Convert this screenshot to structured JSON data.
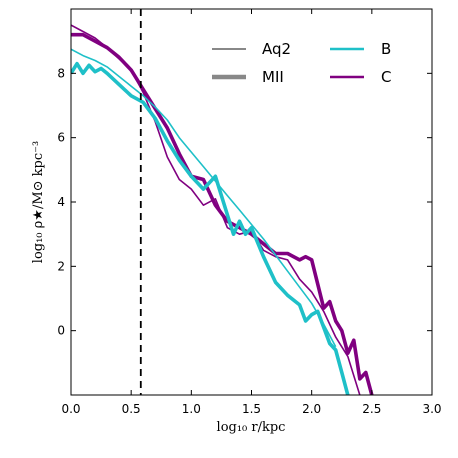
{
  "chart_data": {
    "type": "line",
    "xlabel": "log₁₀ r/kpc",
    "ylabel": "log₁₀ ρ★/M⊙ kpc⁻³",
    "xlim": [
      0.0,
      3.0
    ],
    "ylim": [
      -2.0,
      10.0
    ],
    "xticks": [
      0.0,
      0.5,
      1.0,
      1.5,
      2.0,
      2.5,
      3.0
    ],
    "xtick_labels": [
      "0.0",
      "0.5",
      "1.0",
      "1.5",
      "2.0",
      "2.5",
      "3.0"
    ],
    "yticks": [
      0,
      2,
      4,
      6,
      8
    ],
    "ytick_labels": [
      "0",
      "2",
      "4",
      "6",
      "8"
    ],
    "grid": false,
    "vline": {
      "x": 0.58,
      "style": "dashed",
      "color": "#000000"
    },
    "legend": {
      "placement": "top-right",
      "style_entries": [
        {
          "label": "Aq2",
          "linestyle": "thin",
          "color": "#888888"
        },
        {
          "label": "MII",
          "linestyle": "thick",
          "color": "#888888"
        }
      ],
      "color_entries": [
        {
          "label": "B",
          "color": "#1fc0c8"
        },
        {
          "label": "C",
          "color": "#800080"
        }
      ]
    },
    "series": [
      {
        "halo": "B",
        "style": "Aq2",
        "color": "#1fc0c8",
        "x": [
          0.0,
          0.1,
          0.2,
          0.3,
          0.4,
          0.5,
          0.6,
          0.7,
          0.8,
          0.9,
          1.0,
          1.1,
          1.2,
          1.3,
          1.4,
          1.5,
          1.6,
          1.7,
          1.8,
          1.9,
          2.0,
          2.1,
          2.2
        ],
        "y": [
          8.75,
          8.55,
          8.4,
          8.2,
          7.9,
          7.6,
          7.3,
          6.95,
          6.55,
          6.0,
          5.55,
          5.1,
          4.65,
          4.2,
          3.75,
          3.3,
          2.85,
          2.35,
          1.85,
          1.35,
          0.85,
          0.2,
          -0.5
        ]
      },
      {
        "halo": "B",
        "style": "MII",
        "color": "#1fc0c8",
        "x": [
          0.0,
          0.05,
          0.1,
          0.15,
          0.2,
          0.25,
          0.3,
          0.4,
          0.5,
          0.6,
          0.7,
          0.8,
          0.9,
          1.0,
          1.05,
          1.1,
          1.2,
          1.3,
          1.35,
          1.4,
          1.45,
          1.5,
          1.6,
          1.7,
          1.8,
          1.9,
          1.95,
          2.0,
          2.05,
          2.1,
          2.15,
          2.2,
          2.25,
          2.3
        ],
        "y": [
          8.0,
          8.3,
          8.0,
          8.25,
          8.05,
          8.15,
          8.0,
          7.65,
          7.3,
          7.1,
          6.6,
          5.9,
          5.3,
          4.8,
          4.6,
          4.4,
          4.8,
          3.6,
          3.0,
          3.4,
          3.0,
          3.2,
          2.3,
          1.5,
          1.1,
          0.8,
          0.3,
          0.5,
          0.6,
          0.1,
          -0.4,
          -0.6,
          -1.3,
          -2.0
        ]
      },
      {
        "halo": "C",
        "style": "Aq2",
        "color": "#800080",
        "x": [
          0.0,
          0.1,
          0.2,
          0.3,
          0.4,
          0.5,
          0.6,
          0.7,
          0.8,
          0.9,
          1.0,
          1.1,
          1.2,
          1.3,
          1.4,
          1.5,
          1.6,
          1.7,
          1.8,
          1.9,
          2.0,
          2.1,
          2.2,
          2.3,
          2.4
        ],
        "y": [
          9.5,
          9.3,
          9.1,
          8.8,
          8.45,
          8.1,
          7.4,
          6.5,
          5.4,
          4.7,
          4.4,
          3.9,
          4.1,
          3.2,
          3.0,
          3.1,
          2.5,
          2.3,
          2.2,
          1.6,
          1.2,
          0.6,
          -0.2,
          -0.8,
          -2.0
        ]
      },
      {
        "halo": "C",
        "style": "MII",
        "color": "#800080",
        "x": [
          0.0,
          0.1,
          0.2,
          0.3,
          0.4,
          0.5,
          0.6,
          0.7,
          0.8,
          0.9,
          1.0,
          1.1,
          1.2,
          1.3,
          1.4,
          1.5,
          1.6,
          1.7,
          1.8,
          1.9,
          1.95,
          2.0,
          2.1,
          2.15,
          2.2,
          2.25,
          2.3,
          2.35,
          2.4,
          2.45,
          2.5
        ],
        "y": [
          9.2,
          9.2,
          9.0,
          8.8,
          8.5,
          8.1,
          7.5,
          6.9,
          6.3,
          5.5,
          4.8,
          4.7,
          3.9,
          3.4,
          3.2,
          3.0,
          2.7,
          2.4,
          2.4,
          2.2,
          2.3,
          2.2,
          0.7,
          0.9,
          0.3,
          0.0,
          -0.7,
          -0.3,
          -1.5,
          -1.3,
          -2.0
        ]
      }
    ]
  }
}
